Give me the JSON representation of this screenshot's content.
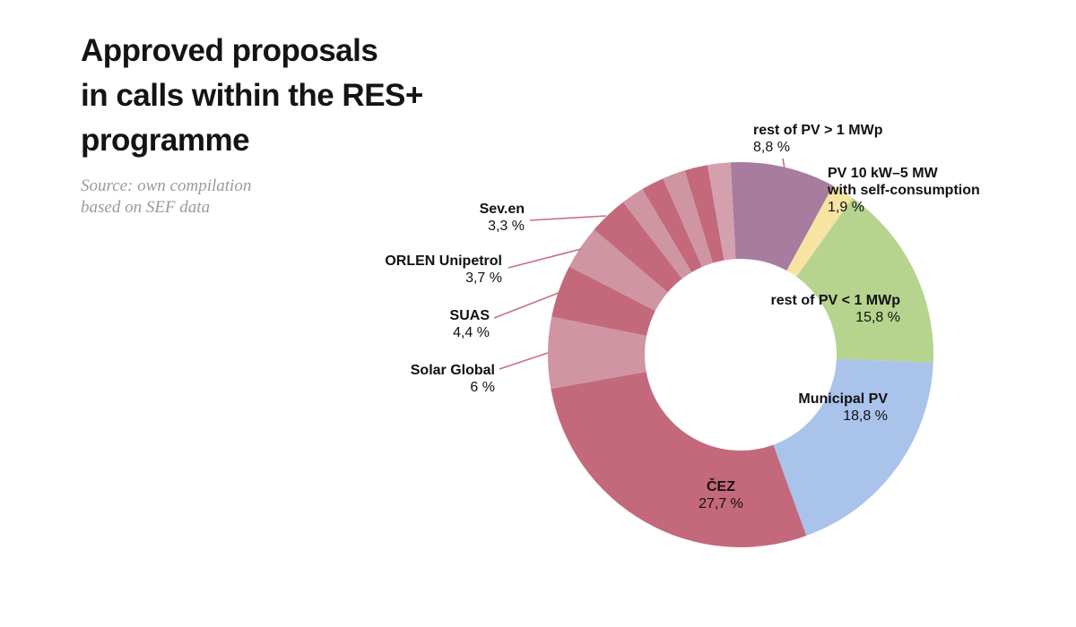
{
  "header": {
    "title": "Approved proposals\nin calls within the RES+\nprogramme",
    "source": "Source: own compilation\nbased on SEF data"
  },
  "colors": {
    "background": "#ffffff",
    "title_text": "#141414",
    "source_text": "#9a9a9a",
    "label_text": "#111111",
    "leader_line": "#c9707f"
  },
  "chart_data": {
    "type": "pie",
    "subtype": "donut",
    "title": "Approved proposals in calls within the RES+ programme",
    "unit": "%",
    "decimal_separator": ",",
    "start_angle_deg": -3,
    "direction": "clockwise",
    "legend_position": "callouts-around-chart",
    "segments": [
      {
        "id": "rest_gt1",
        "label": "rest of PV > 1 MWp",
        "label_lines": [
          "rest of PV > 1 MWp"
        ],
        "value": 8.8,
        "value_label": "8,8 %",
        "color": "#a87c9e"
      },
      {
        "id": "pv10",
        "label": "PV 10 kW–5 MW with self-consumption",
        "label_lines": [
          "PV 10 kW–5 MW",
          "with self-consumption"
        ],
        "value": 1.9,
        "value_label": "1,9 %",
        "color": "#f7e4a3"
      },
      {
        "id": "rest_lt1",
        "label": "rest of PV < 1 MWp",
        "label_lines": [
          "rest of PV < 1 MWp"
        ],
        "value": 15.8,
        "value_label": "15,8 %",
        "color": "#b6d48e"
      },
      {
        "id": "municipal",
        "label": "Municipal PV",
        "label_lines": [
          "Municipal PV"
        ],
        "value": 18.8,
        "value_label": "18,8 %",
        "color": "#a9c3eb"
      },
      {
        "id": "cez",
        "label": "ČEZ",
        "label_lines": [
          "ČEZ"
        ],
        "value": 27.7,
        "value_label": "27,7 %",
        "color": "#c3697b"
      },
      {
        "id": "solar_global",
        "label": "Solar Global",
        "label_lines": [
          "Solar Global"
        ],
        "value": 6,
        "value_label": "6 %",
        "color": "#cf95a2"
      },
      {
        "id": "suas",
        "label": "SUAS",
        "label_lines": [
          "SUAS"
        ],
        "value": 4.4,
        "value_label": "4,4 %",
        "color": "#c3697b"
      },
      {
        "id": "orlen",
        "label": "ORLEN Unipetrol",
        "label_lines": [
          "ORLEN Unipetrol"
        ],
        "value": 3.7,
        "value_label": "3,7 %",
        "color": "#cf95a2"
      },
      {
        "id": "seven",
        "label": "Sev.en",
        "label_lines": [
          "Sev.en"
        ],
        "value": 3.3,
        "value_label": "3,3 %",
        "color": "#c3697b"
      },
      {
        "id": "other1",
        "label": "",
        "value": 1.92,
        "color": "#cf95a2"
      },
      {
        "id": "other2",
        "label": "",
        "value": 1.92,
        "color": "#c3697b"
      },
      {
        "id": "other3",
        "label": "",
        "value": 1.92,
        "color": "#cf95a2"
      },
      {
        "id": "other4",
        "label": "",
        "value": 1.92,
        "color": "#c3697b"
      },
      {
        "id": "other5",
        "label": "",
        "value": 1.92,
        "color": "#d5a0ad"
      }
    ]
  }
}
